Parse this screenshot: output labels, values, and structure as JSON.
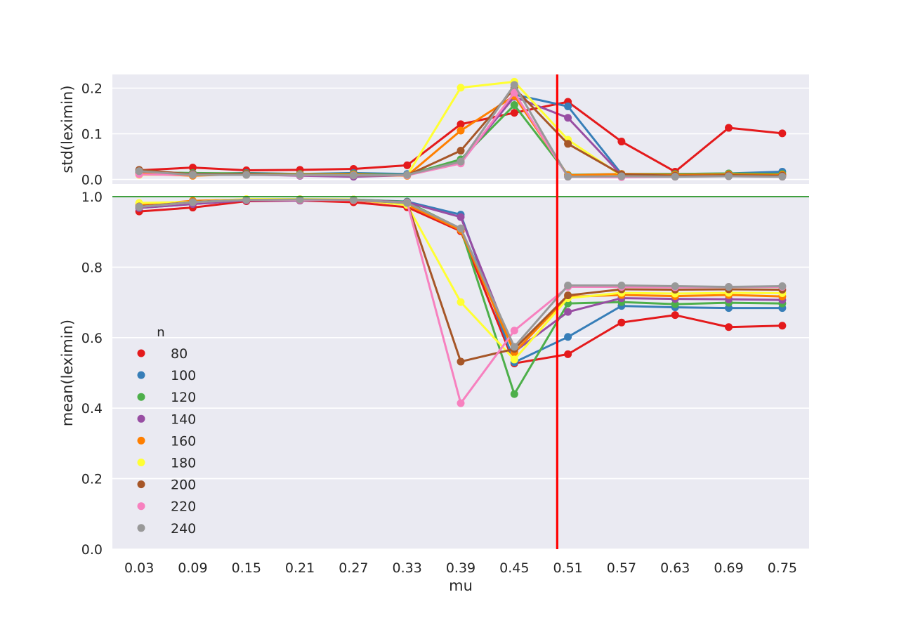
{
  "chart_data": [
    {
      "type": "line",
      "panel": "top",
      "xlabel": "",
      "ylabel": "std(leximin)",
      "ylim": [
        -0.01,
        0.23
      ],
      "yticks": [
        0.0,
        0.1,
        0.2
      ],
      "ytick_labels": [
        "0.0",
        "0.1",
        "0.2"
      ],
      "grid": true,
      "categories": [
        "0.03",
        "0.09",
        "0.15",
        "0.21",
        "0.27",
        "0.33",
        "0.39",
        "0.45",
        "0.51",
        "0.57",
        "0.63",
        "0.69",
        "0.75"
      ],
      "series": [
        {
          "name": "80",
          "color": "#e41a1c",
          "values": [
            0.02,
            0.026,
            0.02,
            0.021,
            0.023,
            0.031,
            0.121,
            0.146,
            0.17,
            0.083,
            0.017,
            0.113,
            0.101
          ]
        },
        {
          "name": "100",
          "color": "#377eb8",
          "values": [
            0.015,
            0.012,
            0.014,
            0.012,
            0.014,
            0.012,
            0.036,
            0.186,
            0.16,
            0.012,
            0.012,
            0.013,
            0.017
          ]
        },
        {
          "name": "120",
          "color": "#4daf4a",
          "values": [
            0.016,
            0.014,
            0.013,
            0.012,
            0.012,
            0.01,
            0.044,
            0.163,
            0.01,
            0.012,
            0.012,
            0.013,
            0.012
          ]
        },
        {
          "name": "140",
          "color": "#984ea3",
          "values": [
            0.015,
            0.012,
            0.011,
            0.008,
            0.006,
            0.009,
            0.038,
            0.181,
            0.135,
            0.01,
            0.01,
            0.011,
            0.009
          ]
        },
        {
          "name": "160",
          "color": "#ff7f00",
          "values": [
            0.013,
            0.008,
            0.012,
            0.011,
            0.011,
            0.008,
            0.107,
            0.183,
            0.009,
            0.012,
            0.01,
            0.011,
            0.01
          ]
        },
        {
          "name": "180",
          "color": "#ffff33",
          "values": [
            0.01,
            0.011,
            0.01,
            0.01,
            0.009,
            0.009,
            0.201,
            0.214,
            0.087,
            0.008,
            0.007,
            0.008,
            0.007
          ]
        },
        {
          "name": "200",
          "color": "#a65628",
          "values": [
            0.021,
            0.011,
            0.012,
            0.01,
            0.009,
            0.009,
            0.063,
            0.2,
            0.078,
            0.011,
            0.008,
            0.009,
            0.008
          ]
        },
        {
          "name": "220",
          "color": "#f781bf",
          "values": [
            0.011,
            0.01,
            0.01,
            0.009,
            0.009,
            0.009,
            0.035,
            0.19,
            0.006,
            0.005,
            0.006,
            0.007,
            0.006
          ]
        },
        {
          "name": "240",
          "color": "#999999",
          "values": [
            0.018,
            0.01,
            0.01,
            0.01,
            0.009,
            0.01,
            0.039,
            0.207,
            0.006,
            0.007,
            0.006,
            0.007,
            0.006
          ]
        }
      ]
    },
    {
      "type": "line",
      "panel": "bottom",
      "xlabel": "mu",
      "ylabel": "mean(leximin)",
      "ylim": [
        0.0,
        1.0
      ],
      "yticks": [
        0.0,
        0.2,
        0.4,
        0.6,
        0.8,
        1.0
      ],
      "ytick_labels": [
        "0.0",
        "0.2",
        "0.4",
        "0.6",
        "0.8",
        "1.0"
      ],
      "grid": true,
      "legend_title": "n",
      "legend_position": "lower-left",
      "categories": [
        "0.03",
        "0.09",
        "0.15",
        "0.21",
        "0.27",
        "0.33",
        "0.39",
        "0.45",
        "0.51",
        "0.57",
        "0.63",
        "0.69",
        "0.75"
      ],
      "series": [
        {
          "name": "80",
          "color": "#e41a1c",
          "values": [
            0.958,
            0.969,
            0.987,
            0.989,
            0.984,
            0.97,
            0.902,
            0.527,
            0.553,
            0.643,
            0.664,
            0.63,
            0.634
          ]
        },
        {
          "name": "100",
          "color": "#377eb8",
          "values": [
            0.968,
            0.979,
            0.99,
            0.991,
            0.991,
            0.986,
            0.949,
            0.53,
            0.602,
            0.69,
            0.686,
            0.684,
            0.684
          ]
        },
        {
          "name": "120",
          "color": "#4daf4a",
          "values": [
            0.97,
            0.983,
            0.991,
            0.992,
            0.992,
            0.985,
            0.909,
            0.44,
            0.697,
            0.701,
            0.695,
            0.699,
            0.697
          ]
        },
        {
          "name": "140",
          "color": "#984ea3",
          "values": [
            0.968,
            0.979,
            0.989,
            0.989,
            0.991,
            0.984,
            0.942,
            0.56,
            0.673,
            0.712,
            0.71,
            0.709,
            0.707
          ]
        },
        {
          "name": "160",
          "color": "#ff7f00",
          "values": [
            0.976,
            0.988,
            0.992,
            0.992,
            0.99,
            0.977,
            0.905,
            0.558,
            0.716,
            0.721,
            0.718,
            0.721,
            0.717
          ]
        },
        {
          "name": "180",
          "color": "#ffff33",
          "values": [
            0.982,
            0.985,
            0.993,
            0.993,
            0.992,
            0.976,
            0.701,
            0.538,
            0.712,
            0.727,
            0.725,
            0.727,
            0.726
          ]
        },
        {
          "name": "200",
          "color": "#a65628",
          "values": [
            0.972,
            0.985,
            0.991,
            0.991,
            0.99,
            0.982,
            0.532,
            0.568,
            0.72,
            0.737,
            0.736,
            0.737,
            0.736
          ]
        },
        {
          "name": "220",
          "color": "#f781bf",
          "values": [
            0.971,
            0.984,
            0.991,
            0.991,
            0.99,
            0.983,
            0.414,
            0.62,
            0.744,
            0.744,
            0.743,
            0.744,
            0.744
          ]
        },
        {
          "name": "240",
          "color": "#999999",
          "values": [
            0.971,
            0.984,
            0.991,
            0.992,
            0.991,
            0.982,
            0.91,
            0.574,
            0.748,
            0.748,
            0.746,
            0.744,
            0.746
          ]
        }
      ],
      "annotations": {
        "reference_hline": {
          "y": 1.0,
          "color": "#008000"
        },
        "reference_vline": {
          "x_between": [
            "0.45",
            "0.51"
          ],
          "x_fraction": 0.8,
          "color": "#ff0000"
        }
      }
    }
  ]
}
